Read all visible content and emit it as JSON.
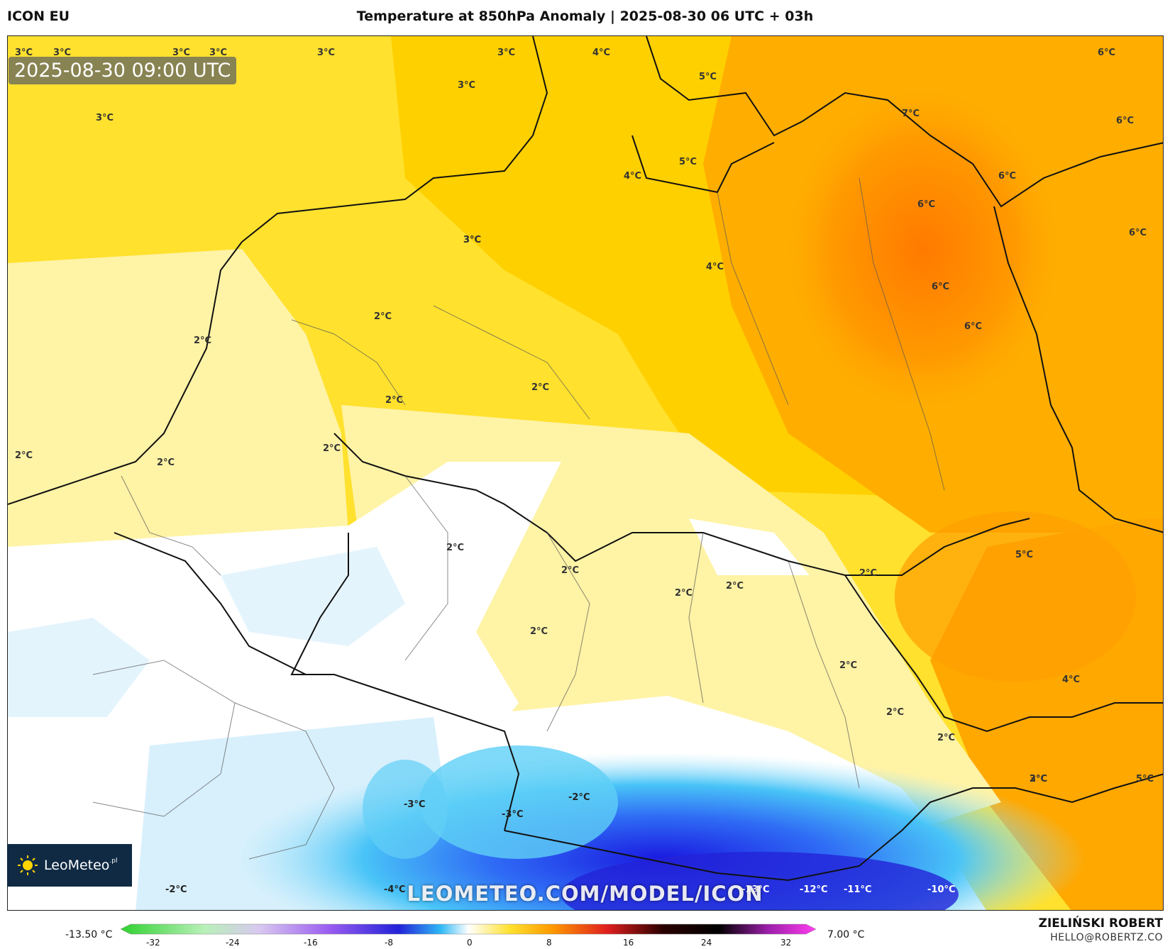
{
  "header": {
    "model": "ICON EU",
    "title": "Temperature at 850hPa Anomaly | 2025-08-30 06 UTC + 03h"
  },
  "map": {
    "valid_time": "2025-08-30 09:00 UTC",
    "watermark": "LEOMETEO.COM/MODEL/ICON",
    "labels": [
      "3°C",
      "3°C",
      "3°C",
      "3°C",
      "3°C",
      "3°C",
      "3°C",
      "4°C",
      "3°C",
      "3°C",
      "5°C",
      "6°C",
      "6°C",
      "7°C",
      "5°C",
      "4°C",
      "6°C",
      "6°C",
      "3°C",
      "4°C",
      "6°C",
      "6°C",
      "6°C",
      "2°C",
      "2°C",
      "2°C",
      "2°C",
      "2°C",
      "2°C",
      "2°C",
      "2°C",
      "2°C",
      "2°C",
      "2°C",
      "2°C",
      "2°C",
      "2°C",
      "2°C",
      "2°C",
      "2°C",
      "5°C",
      "4°C",
      "3°C",
      "5°C",
      "-3°C",
      "-2°C",
      "-3°C",
      "-2°C",
      "-4°C",
      "-13°C",
      "-12°C",
      "-11°C",
      "-10°C"
    ]
  },
  "logo": {
    "name": "LeoMeteo",
    "suffix": ".pl"
  },
  "colorbar": {
    "min_label": "-13.50 °C",
    "max_label": "7.00 °C",
    "ticks": [
      "-32",
      "-24",
      "-16",
      "-8",
      "0",
      "8",
      "16",
      "24",
      "32"
    ]
  },
  "credits": {
    "author": "ZIELIŃSKI ROBERT",
    "email": "HELLO@ROBERTZ.CO"
  },
  "colors": {
    "cold": "#6ad0f5",
    "neutral": "#ffffff",
    "warm": "#ffd400",
    "hot": "#ff7f00"
  }
}
